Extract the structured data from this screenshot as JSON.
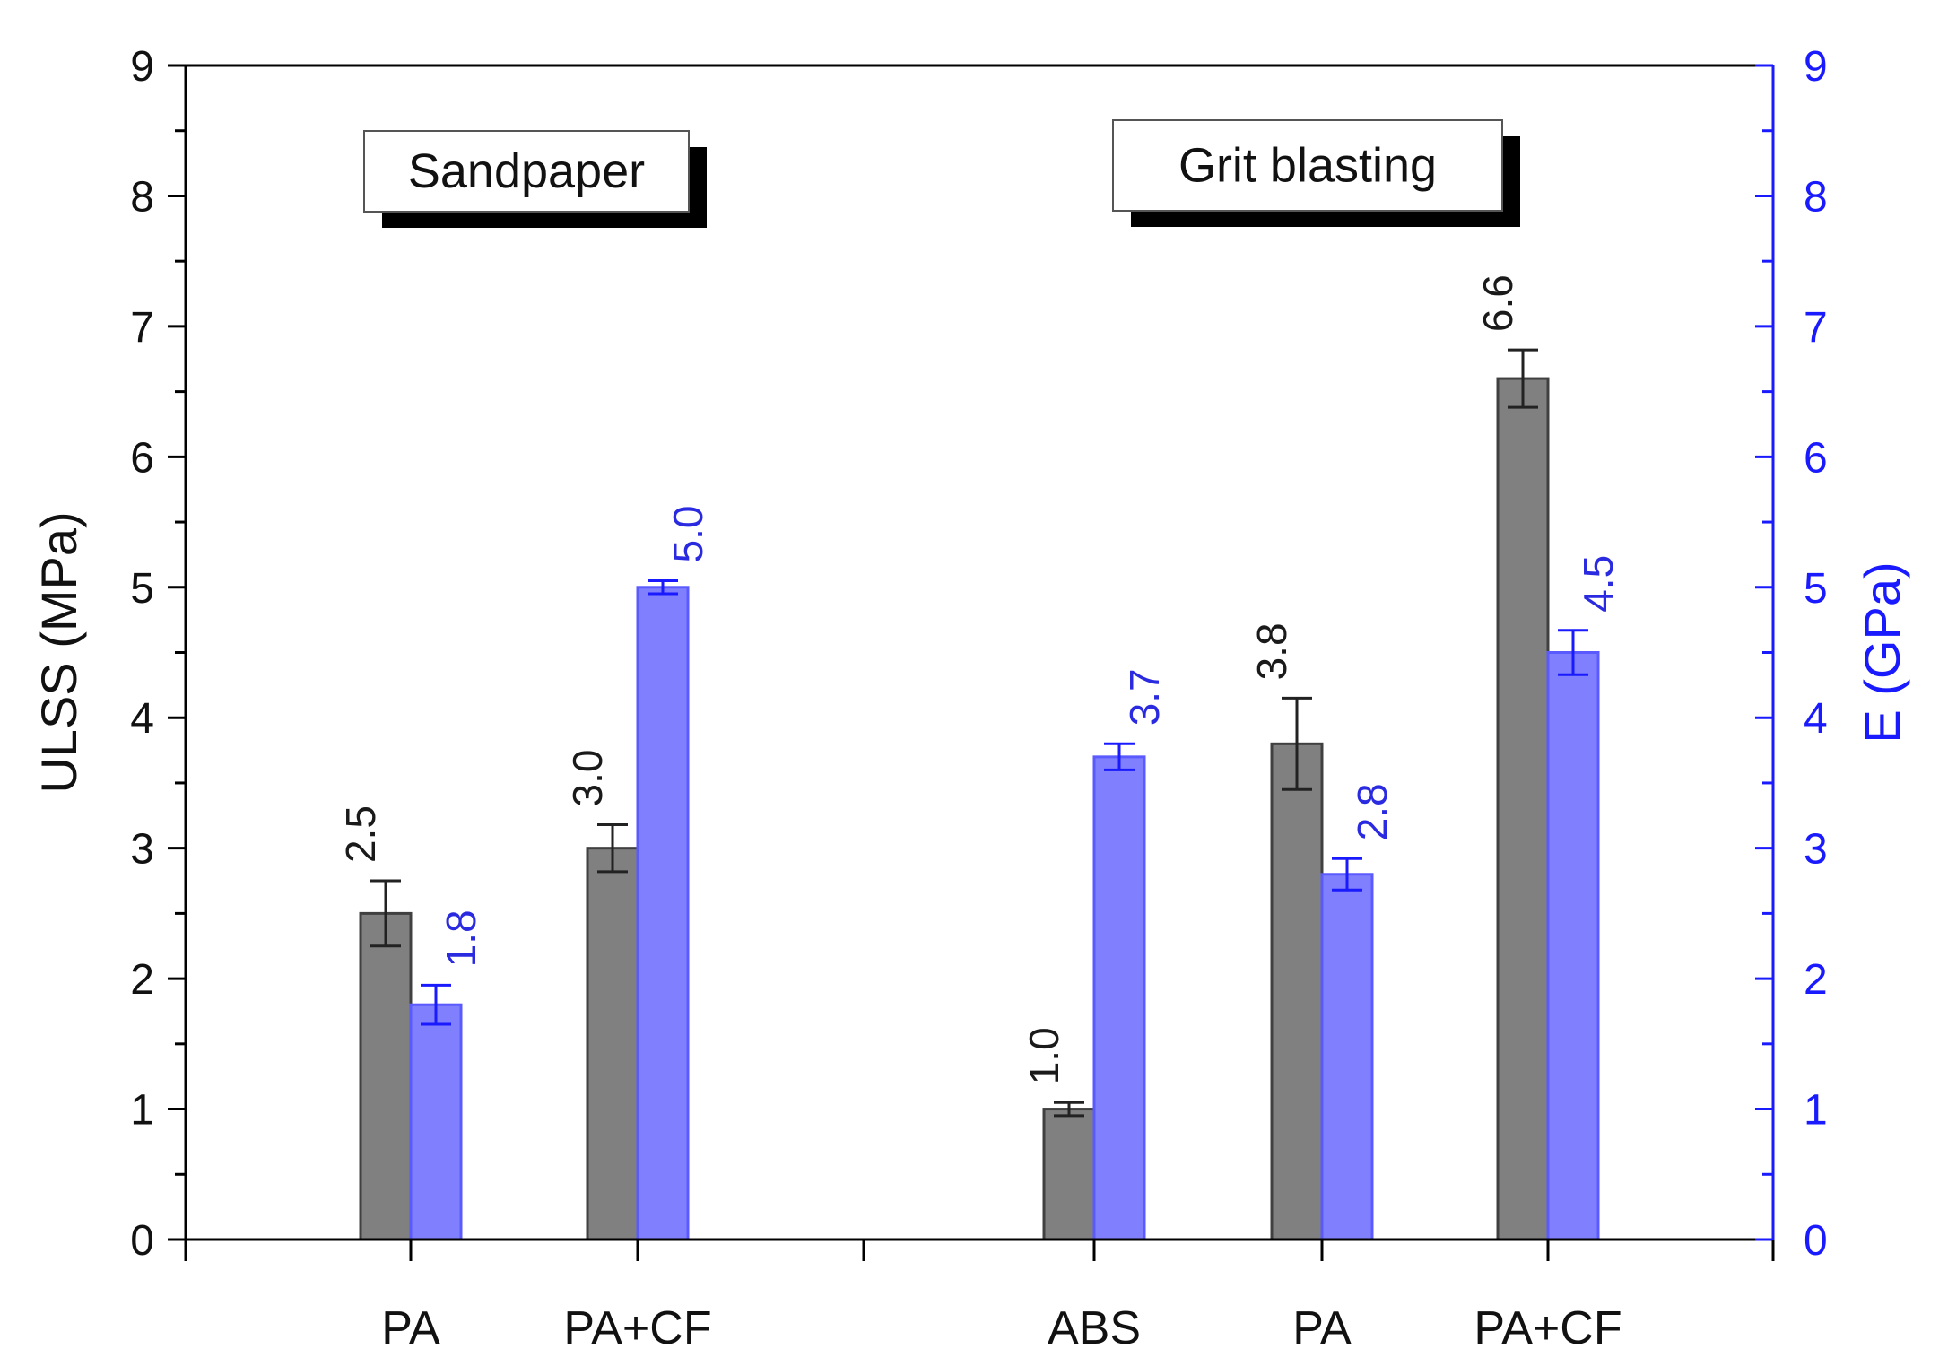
{
  "chart_data": {
    "type": "bar",
    "title": "",
    "ylabel": "ULSS (MPa)",
    "y2label": "E (GPa)",
    "xlabel": "",
    "ylim": [
      0,
      9
    ],
    "y2lim": [
      0,
      9
    ],
    "yticks": [
      0,
      1,
      2,
      3,
      4,
      5,
      6,
      7,
      8,
      9
    ],
    "y2ticks": [
      0,
      1,
      2,
      3,
      4,
      5,
      6,
      7,
      8,
      9
    ],
    "grid": false,
    "groups": [
      {
        "name": "Sandpaper",
        "categories": [
          {
            "label": "PA",
            "ulss": 2.5,
            "ulss_error": 0.25,
            "ulss_label": "2.5",
            "e": 1.8,
            "e_error": 0.15,
            "e_label": "1.8"
          },
          {
            "label": "PA+CF",
            "ulss": 3.0,
            "ulss_error": 0.18,
            "ulss_label": "3.0",
            "e": 5.0,
            "e_error": 0.05,
            "e_label": "5.0"
          }
        ]
      },
      {
        "name": "Grit blasting",
        "categories": [
          {
            "label": "ABS",
            "ulss": 1.0,
            "ulss_error": 0.05,
            "ulss_label": "1.0",
            "e": 3.7,
            "e_error": 0.1,
            "e_label": "3.7"
          },
          {
            "label": "PA",
            "ulss": 3.8,
            "ulss_error": 0.35,
            "ulss_label": "3.8",
            "e": 2.8,
            "e_error": 0.12,
            "e_label": "2.8"
          },
          {
            "label": "PA+CF",
            "ulss": 6.6,
            "ulss_error": 0.22,
            "ulss_label": "6.6",
            "e": 4.5,
            "e_error": 0.17,
            "e_label": "4.5"
          }
        ]
      }
    ],
    "series": [
      {
        "name": "ULSS (MPa)",
        "axis": "left",
        "color": "#808080",
        "edge": "#404040"
      },
      {
        "name": "E (GPa)",
        "axis": "right",
        "color": "#8080ff",
        "edge": "#5a5aff"
      }
    ]
  },
  "colors": {
    "axis_left": "#000000",
    "axis_right": "#1a1aff",
    "label_left": "#1a1a1a",
    "label_right": "#2a2ae0"
  }
}
